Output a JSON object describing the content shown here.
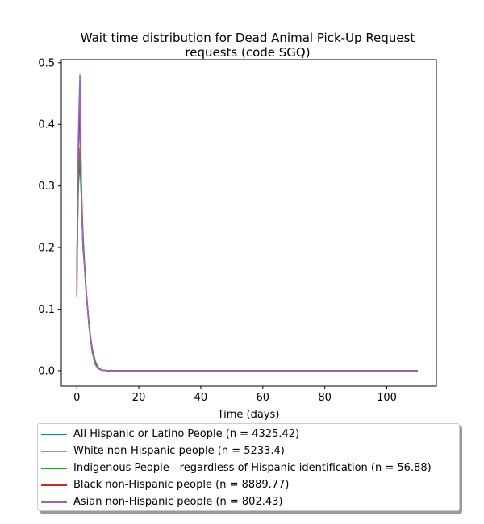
{
  "chart_data": {
    "type": "line",
    "title": [
      "Wait time distribution  for Dead Animal Pick-Up Request",
      "requests (code SGQ)"
    ],
    "xlabel": "Time (days)",
    "ylabel": "",
    "xlim": [
      -5,
      116
    ],
    "ylim": [
      -0.025,
      0.505
    ],
    "xticks": [
      0,
      20,
      40,
      60,
      80,
      100
    ],
    "yticks": [
      0.0,
      0.1,
      0.2,
      0.3,
      0.4,
      0.5
    ],
    "xtick_labels": [
      "0",
      "20",
      "40",
      "60",
      "80",
      "100"
    ],
    "ytick_labels": [
      "0.0",
      "0.1",
      "0.2",
      "0.3",
      "0.4",
      "0.5"
    ],
    "grid": false,
    "legend_placement": "below",
    "series": [
      {
        "name": "All Hispanic or Latino People (n = 4325.42)",
        "color": "#1f77b4",
        "x": [
          0,
          0.5,
          1,
          1.5,
          2,
          2.5,
          3,
          4,
          5,
          6,
          7,
          8,
          10,
          15,
          20,
          40,
          60,
          80,
          100,
          110
        ],
        "y": [
          0.18,
          0.3,
          0.34,
          0.28,
          0.22,
          0.17,
          0.13,
          0.07,
          0.03,
          0.012,
          0.004,
          0.001,
          0.0,
          0.0,
          0.0,
          0.0,
          0.0,
          0.0,
          0.0,
          0.0
        ]
      },
      {
        "name": "White non-Hispanic people (n = 5233.4)",
        "color": "#ff7f0e",
        "x": [
          0,
          0.5,
          1,
          1.5,
          2,
          2.5,
          3,
          4,
          5,
          6,
          7,
          8,
          10,
          15,
          20,
          40,
          60,
          80,
          100,
          110
        ],
        "y": [
          0.15,
          0.34,
          0.41,
          0.3,
          0.21,
          0.17,
          0.13,
          0.07,
          0.03,
          0.01,
          0.003,
          0.001,
          0.0,
          0.0,
          0.0,
          0.0,
          0.0,
          0.0,
          0.0,
          0.0
        ]
      },
      {
        "name": "Indigenous People - regardless of Hispanic identification (n = 56.88)",
        "color": "#2ca02c",
        "x": [
          0,
          0.5,
          1,
          1.5,
          2,
          2.5,
          3,
          4,
          5,
          6,
          7,
          8,
          10,
          15,
          20,
          40,
          60,
          80,
          100,
          110
        ],
        "y": [
          0.16,
          0.32,
          0.36,
          0.28,
          0.21,
          0.17,
          0.13,
          0.07,
          0.035,
          0.015,
          0.005,
          0.001,
          0.0,
          0.0,
          0.0,
          0.0,
          0.0,
          0.0,
          0.0,
          0.0
        ]
      },
      {
        "name": "Black non-Hispanic people (n = 8889.77)",
        "color": "#d62728",
        "x": [
          0,
          0.5,
          1,
          1.5,
          2,
          2.5,
          3,
          4,
          5,
          6,
          7,
          8,
          10,
          15,
          20,
          40,
          60,
          80,
          100,
          110
        ],
        "y": [
          0.13,
          0.36,
          0.43,
          0.29,
          0.2,
          0.17,
          0.13,
          0.07,
          0.03,
          0.01,
          0.003,
          0.001,
          0.0,
          0.0,
          0.0,
          0.0,
          0.0,
          0.0,
          0.0,
          0.0
        ]
      },
      {
        "name": "Asian non-Hispanic people (n = 802.43)",
        "color": "#9467bd",
        "x": [
          0,
          0.5,
          1,
          1.5,
          2,
          2.5,
          3,
          4,
          5,
          6,
          7,
          8,
          10,
          15,
          20,
          40,
          60,
          80,
          100,
          110
        ],
        "y": [
          0.12,
          0.38,
          0.48,
          0.28,
          0.2,
          0.17,
          0.13,
          0.07,
          0.03,
          0.01,
          0.003,
          0.001,
          0.0,
          0.0,
          0.0,
          0.0,
          0.0,
          0.0,
          0.0,
          0.0
        ]
      }
    ]
  }
}
